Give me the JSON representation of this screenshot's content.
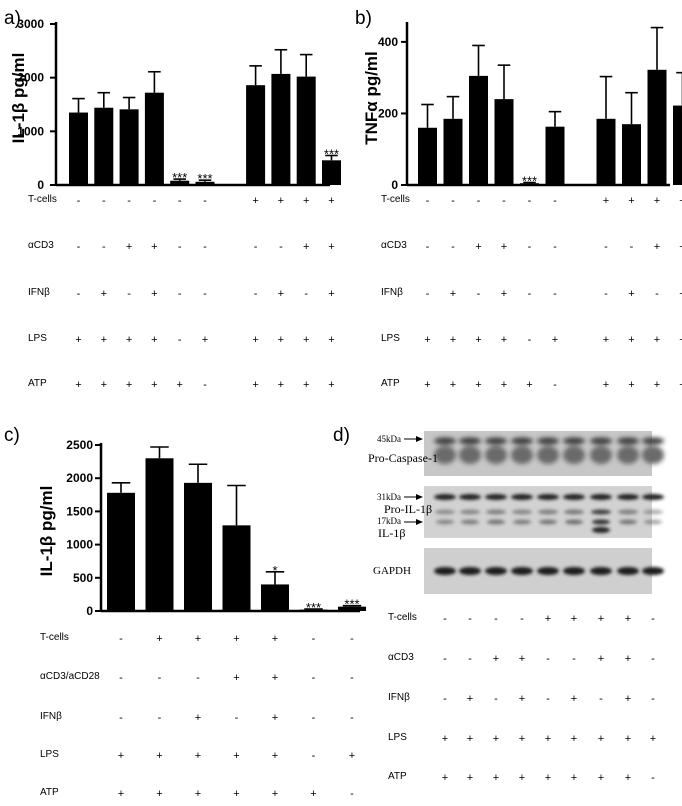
{
  "panels": {
    "a": "a)",
    "b": "b)",
    "c": "c)",
    "d": "d)"
  },
  "chart_data": [
    {
      "panel": "a",
      "type": "bar",
      "ylabel": "IL-1β pg/ml",
      "ylim": [
        0,
        3000
      ],
      "yticks": [
        0,
        1000,
        2000,
        3000
      ],
      "values": [
        1350,
        1440,
        1410,
        1720,
        80,
        60,
        null,
        1860,
        2070,
        2020,
        460
      ],
      "errors": [
        260,
        280,
        220,
        390,
        30,
        30,
        null,
        360,
        450,
        410,
        90
      ],
      "significance": [
        "",
        "",
        "",
        "",
        "***",
        "***",
        "",
        "",
        "",
        "",
        "***"
      ],
      "conditions": [
        {
          "label": "T-cells",
          "values": [
            "-",
            "-",
            "-",
            "-",
            "-",
            "-",
            "+",
            "+",
            "+",
            "+"
          ]
        },
        {
          "label": "αCD3",
          "values": [
            "-",
            "-",
            "+",
            "+",
            "-",
            "-",
            "-",
            "-",
            "+",
            "+"
          ]
        },
        {
          "label": "IFNβ",
          "values": [
            "-",
            "+",
            "-",
            "+",
            "-",
            "-",
            "-",
            "+",
            "-",
            "+"
          ]
        },
        {
          "label": "LPS",
          "values": [
            "+",
            "+",
            "+",
            "+",
            "-",
            "+",
            "+",
            "+",
            "+",
            "+"
          ]
        },
        {
          "label": "ATP",
          "values": [
            "+",
            "+",
            "+",
            "+",
            "+",
            "-",
            "+",
            "+",
            "+",
            "+"
          ]
        }
      ]
    },
    {
      "panel": "b",
      "type": "bar",
      "ylabel": "TNFα pg/ml",
      "ylim": [
        0,
        450
      ],
      "yticks": [
        0,
        200,
        400
      ],
      "values": [
        160,
        185,
        305,
        240,
        5,
        163,
        null,
        185,
        170,
        322,
        222
      ],
      "errors": [
        65,
        62,
        85,
        95,
        2,
        42,
        null,
        118,
        88,
        118,
        92
      ],
      "significance": [
        "",
        "",
        "",
        "",
        "***",
        "",
        "",
        "",
        "",
        "",
        ""
      ],
      "conditions": [
        {
          "label": "T-cells",
          "values": [
            "-",
            "-",
            "-",
            "-",
            "-",
            "-",
            "+",
            "+",
            "+",
            "+"
          ]
        },
        {
          "label": "αCD3",
          "values": [
            "-",
            "-",
            "+",
            "+",
            "-",
            "-",
            "-",
            "-",
            "+",
            "+"
          ]
        },
        {
          "label": "IFNβ",
          "values": [
            "-",
            "+",
            "-",
            "+",
            "-",
            "-",
            "-",
            "+",
            "-",
            "+"
          ]
        },
        {
          "label": "LPS",
          "values": [
            "+",
            "+",
            "+",
            "+",
            "-",
            "+",
            "+",
            "+",
            "+",
            "+"
          ]
        },
        {
          "label": "ATP",
          "values": [
            "+",
            "+",
            "+",
            "+",
            "+",
            "-",
            "+",
            "+",
            "+",
            "+"
          ]
        }
      ]
    },
    {
      "panel": "c",
      "type": "bar",
      "ylabel": "IL-1β pg/ml",
      "ylim": [
        0,
        2500
      ],
      "yticks": [
        0,
        500,
        1000,
        1500,
        2000,
        2500
      ],
      "values": [
        1780,
        2300,
        1930,
        1290,
        400,
        20,
        65
      ],
      "errors": [
        150,
        170,
        280,
        600,
        190,
        10,
        15
      ],
      "significance": [
        "",
        "",
        "",
        "",
        "*",
        "***",
        "***"
      ],
      "conditions": [
        {
          "label": "T-cells",
          "values": [
            "-",
            "+",
            "+",
            "+",
            "+",
            "-",
            "-"
          ]
        },
        {
          "label": "αCD3/aCD28",
          "values": [
            "-",
            "-",
            "-",
            "+",
            "+",
            "-",
            "-"
          ]
        },
        {
          "label": "IFNβ",
          "values": [
            "-",
            "-",
            "+",
            "-",
            "+",
            "-",
            "-"
          ]
        },
        {
          "label": "LPS",
          "values": [
            "+",
            "+",
            "+",
            "+",
            "+",
            "-",
            "+"
          ]
        },
        {
          "label": "ATP",
          "values": [
            "+",
            "+",
            "+",
            "+",
            "+",
            "+",
            "-"
          ]
        }
      ]
    },
    {
      "panel": "d",
      "type": "table",
      "blots": [
        {
          "name": "Pro-Caspase-1",
          "markers": [
            "45kDa"
          ]
        },
        {
          "name": "Pro-IL-1β",
          "second_name": "IL-1β",
          "markers": [
            "31kDa",
            "17kDa"
          ]
        },
        {
          "name": "GAPDH",
          "markers": []
        }
      ],
      "conditions": [
        {
          "label": "T-cells",
          "values": [
            "-",
            "-",
            "-",
            "-",
            "+",
            "+",
            "+",
            "+",
            "-"
          ]
        },
        {
          "label": "αCD3",
          "values": [
            "-",
            "-",
            "+",
            "+",
            "-",
            "-",
            "+",
            "+",
            "-"
          ]
        },
        {
          "label": "IFNβ",
          "values": [
            "-",
            "+",
            "-",
            "+",
            "-",
            "+",
            "-",
            "+",
            "-"
          ]
        },
        {
          "label": "LPS",
          "values": [
            "+",
            "+",
            "+",
            "+",
            "+",
            "+",
            "+",
            "+",
            "+"
          ]
        },
        {
          "label": "ATP",
          "values": [
            "+",
            "+",
            "+",
            "+",
            "+",
            "+",
            "+",
            "+",
            "-"
          ]
        }
      ]
    }
  ]
}
